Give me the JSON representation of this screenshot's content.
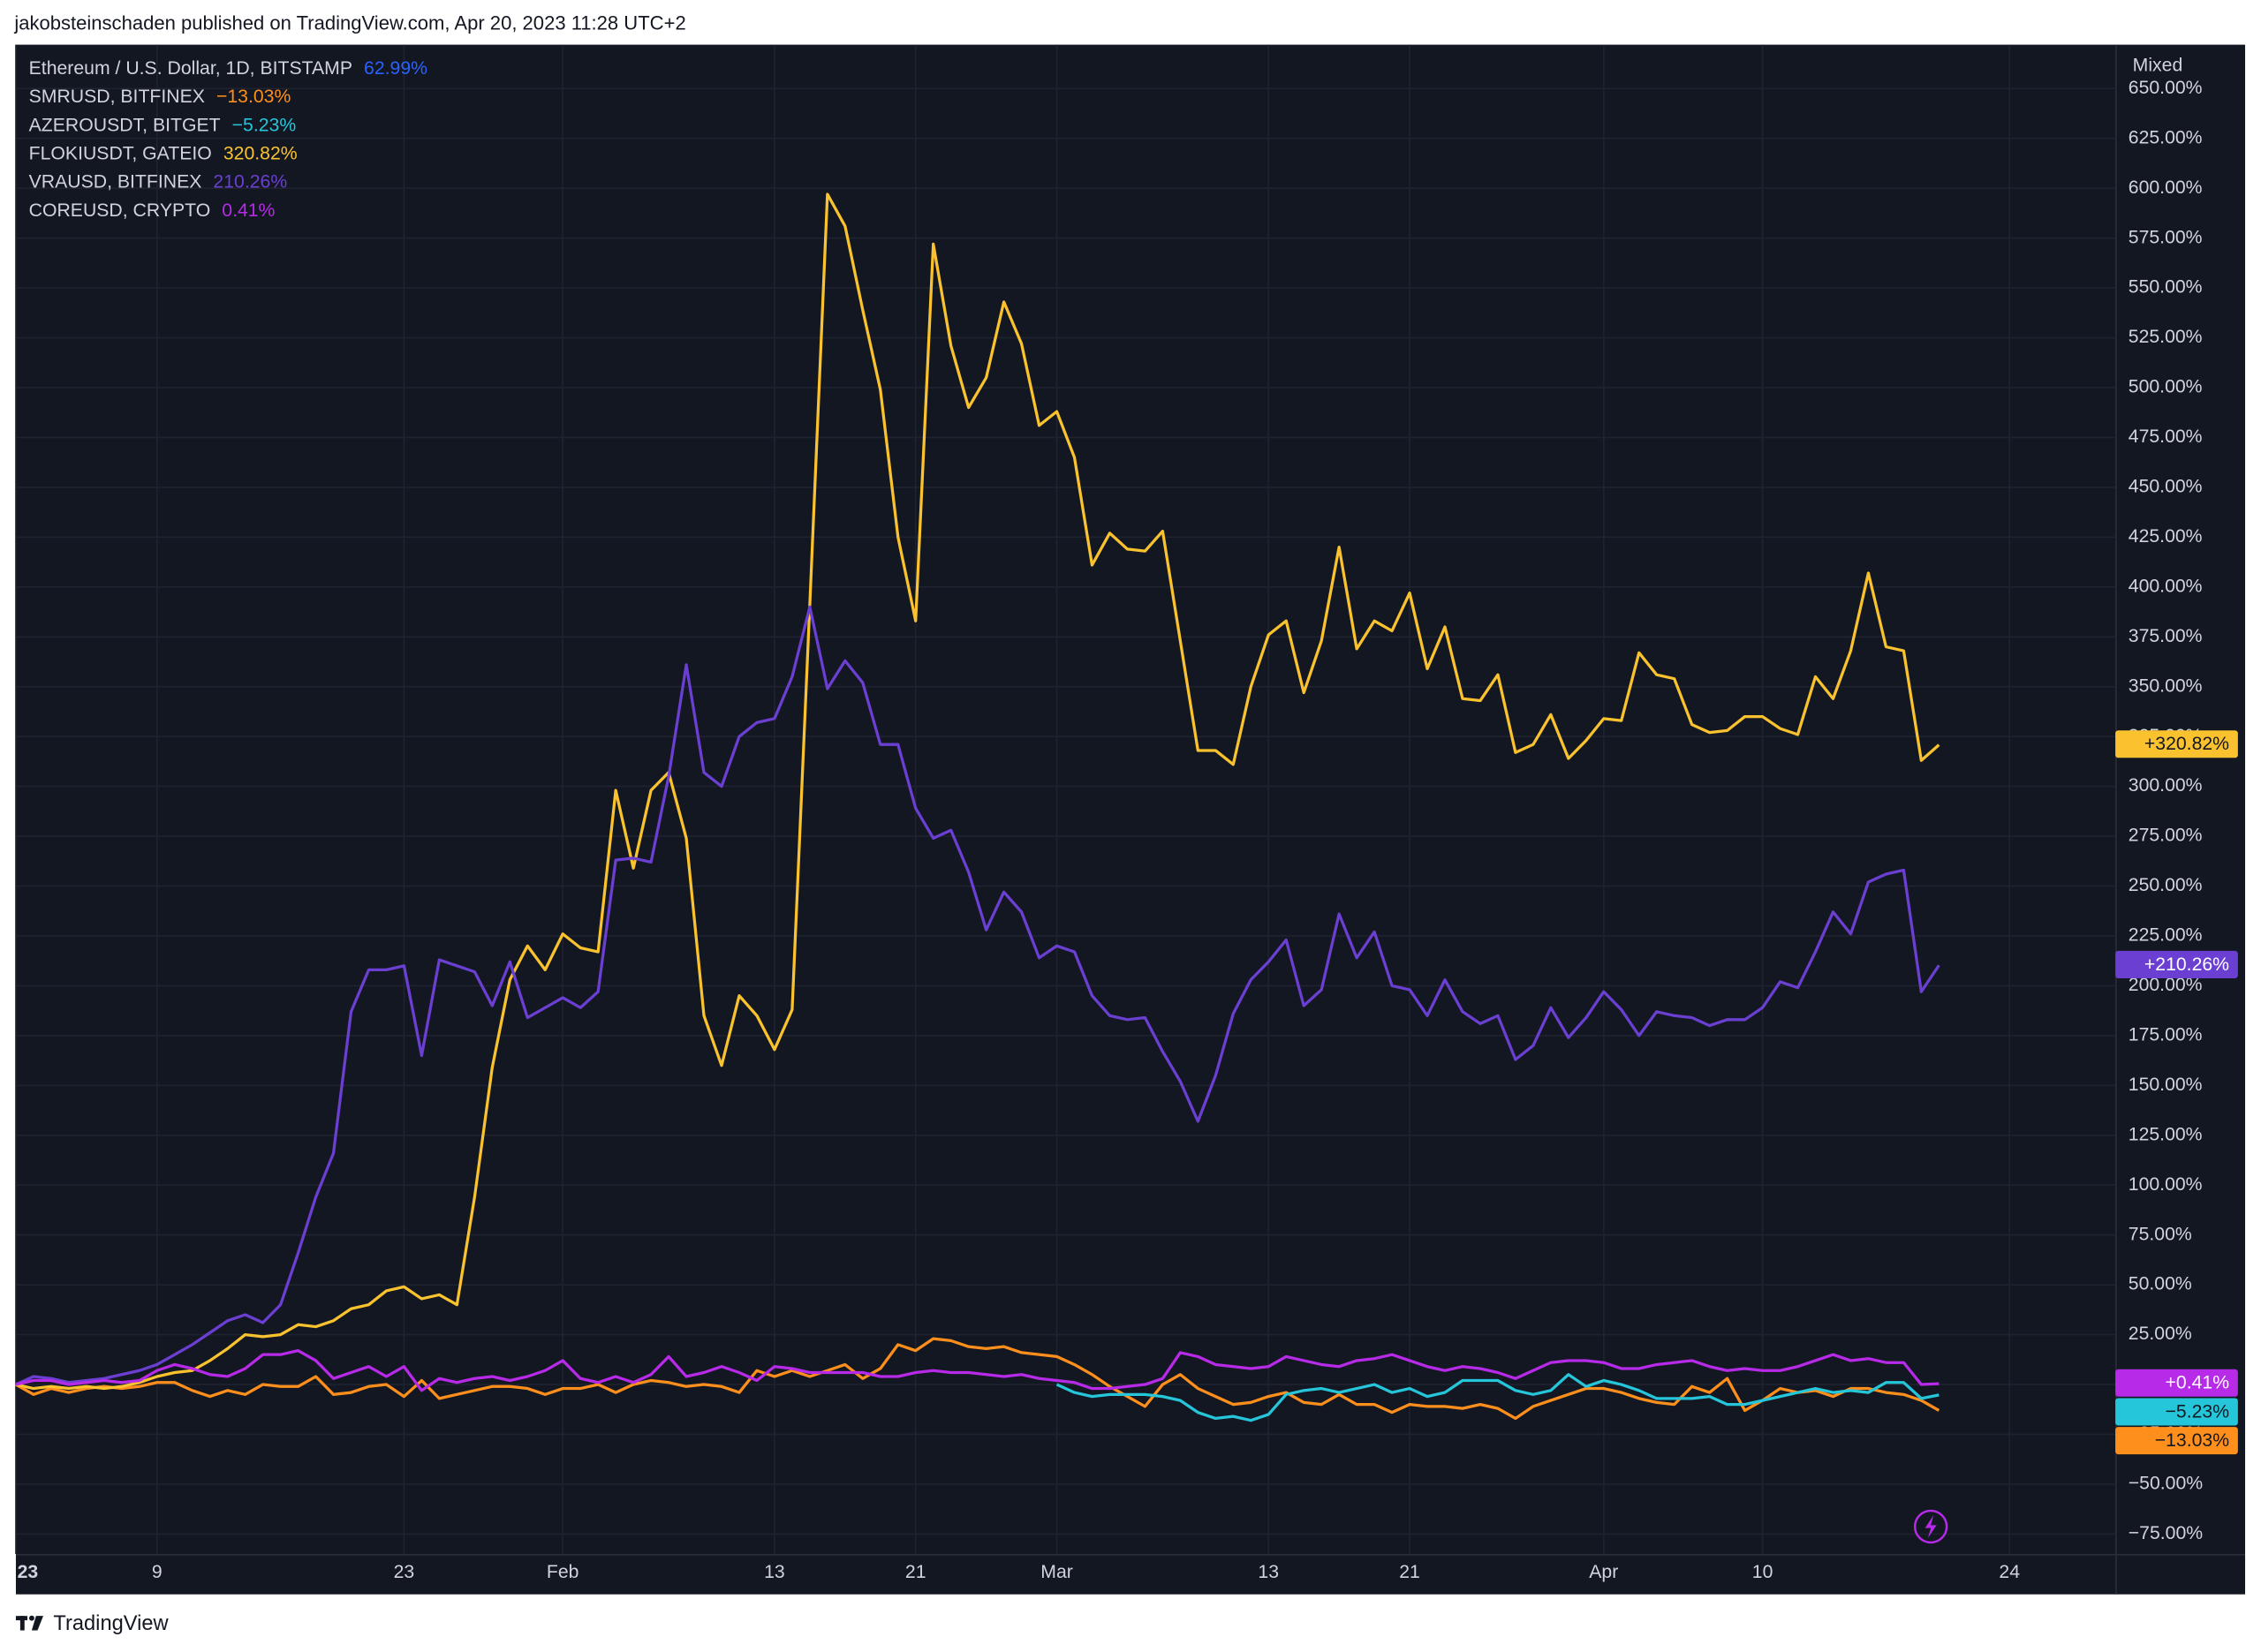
{
  "header": "jakobsteinschaden published on TradingView.com, Apr 20, 2023 11:28 UTC+2",
  "footer": "TradingView",
  "chart_data": {
    "type": "line",
    "scale_label": "Mixed",
    "grid": true,
    "x": [
      "2023-01-01",
      "2023-01-02",
      "2023-01-03",
      "2023-01-04",
      "2023-01-05",
      "2023-01-06",
      "2023-01-07",
      "2023-01-08",
      "2023-01-09",
      "2023-01-10",
      "2023-01-11",
      "2023-01-12",
      "2023-01-13",
      "2023-01-14",
      "2023-01-15",
      "2023-01-16",
      "2023-01-17",
      "2023-01-18",
      "2023-01-19",
      "2023-01-20",
      "2023-01-21",
      "2023-01-22",
      "2023-01-23",
      "2023-01-24",
      "2023-01-25",
      "2023-01-26",
      "2023-01-27",
      "2023-01-28",
      "2023-01-29",
      "2023-01-30",
      "2023-01-31",
      "2023-02-01",
      "2023-02-02",
      "2023-02-03",
      "2023-02-04",
      "2023-02-05",
      "2023-02-06",
      "2023-02-07",
      "2023-02-08",
      "2023-02-09",
      "2023-02-10",
      "2023-02-11",
      "2023-02-12",
      "2023-02-13",
      "2023-02-14",
      "2023-02-15",
      "2023-02-16",
      "2023-02-17",
      "2023-02-18",
      "2023-02-19",
      "2023-02-20",
      "2023-02-21",
      "2023-02-22",
      "2023-02-23",
      "2023-02-24",
      "2023-02-25",
      "2023-02-26",
      "2023-02-27",
      "2023-02-28",
      "2023-03-01",
      "2023-03-02",
      "2023-03-03",
      "2023-03-04",
      "2023-03-05",
      "2023-03-06",
      "2023-03-07",
      "2023-03-08",
      "2023-03-09",
      "2023-03-10",
      "2023-03-11",
      "2023-03-12",
      "2023-03-13",
      "2023-03-14",
      "2023-03-15",
      "2023-03-16",
      "2023-03-17",
      "2023-03-18",
      "2023-03-19",
      "2023-03-20",
      "2023-03-21",
      "2023-03-22",
      "2023-03-23",
      "2023-03-24",
      "2023-03-25",
      "2023-03-26",
      "2023-03-27",
      "2023-03-28",
      "2023-03-29",
      "2023-03-30",
      "2023-03-31",
      "2023-04-01",
      "2023-04-02",
      "2023-04-03",
      "2023-04-04",
      "2023-04-05",
      "2023-04-06",
      "2023-04-07",
      "2023-04-08",
      "2023-04-09",
      "2023-04-10",
      "2023-04-11",
      "2023-04-12",
      "2023-04-13",
      "2023-04-14",
      "2023-04-15",
      "2023-04-16",
      "2023-04-17",
      "2023-04-18",
      "2023-04-19",
      "2023-04-20"
    ],
    "xlim": [
      "2023-01-01",
      "2023-04-30"
    ],
    "xticks": [
      {
        "value": "2023-01-01",
        "label": "23"
      },
      {
        "value": "2023-01-09",
        "label": "9"
      },
      {
        "value": "2023-01-23",
        "label": "23"
      },
      {
        "value": "2023-02-01",
        "label": "Feb"
      },
      {
        "value": "2023-02-13",
        "label": "13"
      },
      {
        "value": "2023-02-21",
        "label": "21"
      },
      {
        "value": "2023-03-01",
        "label": "Mar"
      },
      {
        "value": "2023-03-13",
        "label": "13"
      },
      {
        "value": "2023-03-21",
        "label": "21"
      },
      {
        "value": "2023-04-01",
        "label": "Apr"
      },
      {
        "value": "2023-04-10",
        "label": "10"
      },
      {
        "value": "2023-04-24",
        "label": "24"
      }
    ],
    "ylim": [
      -85,
      672
    ],
    "yticks": [
      {
        "value": -75,
        "label": "−75.00%"
      },
      {
        "value": -50,
        "label": "−50.00%"
      },
      {
        "value": -25,
        "label": "−25.00%"
      },
      {
        "value": 0,
        "label": "0.00%"
      },
      {
        "value": 25,
        "label": "25.00%"
      },
      {
        "value": 50,
        "label": "50.00%"
      },
      {
        "value": 75,
        "label": "75.00%"
      },
      {
        "value": 100,
        "label": "100.00%"
      },
      {
        "value": 125,
        "label": "125.00%"
      },
      {
        "value": 150,
        "label": "150.00%"
      },
      {
        "value": 175,
        "label": "175.00%"
      },
      {
        "value": 200,
        "label": "200.00%"
      },
      {
        "value": 225,
        "label": "225.00%"
      },
      {
        "value": 250,
        "label": "250.00%"
      },
      {
        "value": 275,
        "label": "275.00%"
      },
      {
        "value": 300,
        "label": "300.00%"
      },
      {
        "value": 325,
        "label": "325.00%"
      },
      {
        "value": 350,
        "label": "350.00%"
      },
      {
        "value": 375,
        "label": "375.00%"
      },
      {
        "value": 400,
        "label": "400.00%"
      },
      {
        "value": 425,
        "label": "425.00%"
      },
      {
        "value": 450,
        "label": "450.00%"
      },
      {
        "value": 475,
        "label": "475.00%"
      },
      {
        "value": 500,
        "label": "500.00%"
      },
      {
        "value": 525,
        "label": "525.00%"
      },
      {
        "value": 550,
        "label": "550.00%"
      },
      {
        "value": 575,
        "label": "575.00%"
      },
      {
        "value": 600,
        "label": "600.00%"
      },
      {
        "value": 625,
        "label": "625.00%"
      },
      {
        "value": 650,
        "label": "650.00%"
      }
    ],
    "series": [
      {
        "name": "Ethereum / U.S. Dollar, 1D, BITSTAMP",
        "color": "#2962ff",
        "change_label": "62.99%"
      },
      {
        "name": "SMRUSD, BITFINEX",
        "color": "#ff8f1c",
        "change_label": "−13.03%",
        "tag_label": "−13.03%",
        "values": [
          0,
          -5,
          -2,
          -4,
          -2,
          -1,
          -2,
          -1,
          1,
          1,
          -3,
          -6,
          -3,
          -5,
          0,
          -1,
          -1,
          4,
          -5,
          -4,
          -1,
          0,
          -6,
          2,
          -7,
          -5,
          -3,
          -1,
          -1,
          -2,
          -5,
          -2,
          -2,
          0,
          -4,
          0,
          2,
          1,
          -1,
          0,
          -1,
          -4,
          7,
          4,
          7,
          4,
          7,
          10,
          3,
          8,
          20,
          17,
          23,
          22,
          19,
          18,
          19,
          16,
          15,
          14,
          10,
          5,
          -1,
          -6,
          -11,
          0,
          5,
          -2,
          -6,
          -10,
          -9,
          -6,
          -4,
          -9,
          -10,
          -5,
          -10,
          -10,
          -14,
          -10,
          -11,
          -11,
          -12,
          -10,
          -12,
          -17,
          -11,
          -8,
          -5,
          -2,
          -2,
          -4,
          -7,
          -9,
          -10,
          -1,
          -4,
          3,
          -13,
          -8,
          -2,
          -4,
          -3,
          -6,
          -2,
          -2,
          -4,
          -5,
          -8,
          -13.03
        ]
      },
      {
        "name": "AZEROUSDT, BITGET",
        "color": "#26c6da",
        "change_label": "−5.23%",
        "tag_label": "−5.23%",
        "values": [
          null,
          null,
          null,
          null,
          null,
          null,
          null,
          null,
          null,
          null,
          null,
          null,
          null,
          null,
          null,
          null,
          null,
          null,
          null,
          null,
          null,
          null,
          null,
          null,
          null,
          null,
          null,
          null,
          null,
          null,
          null,
          null,
          null,
          null,
          null,
          null,
          null,
          null,
          null,
          null,
          null,
          null,
          null,
          null,
          null,
          null,
          null,
          null,
          null,
          null,
          null,
          null,
          null,
          null,
          null,
          null,
          null,
          null,
          null,
          0,
          -4,
          -6,
          -5,
          -5,
          -5,
          -6,
          -8,
          -14,
          -17,
          -16,
          -18,
          -15,
          -5,
          -3,
          -2,
          -4,
          -2,
          0,
          -4,
          -2,
          -6,
          -4,
          2,
          2,
          2,
          -3,
          -5,
          -3,
          5,
          -1,
          2,
          0,
          -3,
          -7,
          -7,
          -7,
          -6,
          -10,
          -10,
          -8,
          -6,
          -4,
          -2,
          -4,
          -3,
          -4,
          1,
          1,
          -7,
          -5.23
        ]
      },
      {
        "name": "FLOKIUSDT, GATEIO",
        "color": "#f9c22e",
        "change_label": "320.82%",
        "tag_label": "+320.82%",
        "values": [
          0,
          -2,
          -1,
          -2,
          -1,
          -2,
          -1,
          1,
          4,
          6,
          7,
          12,
          18,
          25,
          24,
          25,
          30,
          29,
          32,
          38,
          40,
          47,
          49,
          43,
          45,
          40,
          94,
          159,
          203,
          220,
          208,
          226,
          219,
          217,
          298,
          259,
          298,
          307,
          274,
          185,
          160,
          195,
          185,
          168,
          188,
          391,
          597,
          581,
          539,
          499,
          425,
          383,
          572,
          521,
          490,
          505,
          543,
          522,
          481,
          488,
          465,
          411,
          427,
          419,
          418,
          428,
          373,
          318,
          318,
          311,
          350,
          376,
          383,
          347,
          373,
          420,
          369,
          383,
          378,
          397,
          359,
          380,
          344,
          343,
          356,
          317,
          321,
          336,
          314,
          323,
          334,
          333,
          367,
          356,
          354,
          331,
          327,
          328,
          335,
          335,
          329,
          326,
          355,
          344,
          368,
          407,
          370,
          368,
          313,
          320.82
        ]
      },
      {
        "name": "VRAUSD, BITFINEX",
        "color": "#6a3fd2",
        "change_label": "210.26%",
        "tag_label": "+210.26%",
        "values": [
          0,
          4,
          3,
          1,
          2,
          3,
          5,
          7,
          10,
          15,
          20,
          26,
          32,
          35,
          31,
          40,
          66,
          94,
          116,
          187,
          208,
          208,
          210,
          165,
          213,
          210,
          207,
          190,
          212,
          184,
          189,
          194,
          189,
          197,
          263,
          264,
          262,
          305,
          361,
          307,
          300,
          325,
          332,
          334,
          355,
          390,
          349,
          363,
          352,
          321,
          321,
          289,
          274,
          278,
          257,
          228,
          247,
          237,
          214,
          220,
          217,
          195,
          185,
          183,
          184,
          167,
          152,
          132,
          155,
          186,
          203,
          212,
          223,
          190,
          198,
          236,
          214,
          227,
          200,
          198,
          185,
          203,
          187,
          181,
          185,
          163,
          170,
          189,
          174,
          184,
          197,
          188,
          175,
          187,
          185,
          184,
          180,
          183,
          183,
          189,
          202,
          199,
          217,
          237,
          226,
          252,
          256,
          258,
          197,
          210.26
        ]
      },
      {
        "name": "COREUSD, CRYPTO",
        "color": "#b62ae8",
        "change_label": "0.41%",
        "tag_label": "+0.41%",
        "values": [
          0,
          2,
          2,
          0,
          1,
          2,
          1,
          2,
          7,
          10,
          8,
          5,
          4,
          8,
          15,
          15,
          17,
          12,
          3,
          6,
          9,
          4,
          9,
          -3,
          3,
          1,
          3,
          4,
          2,
          4,
          7,
          12,
          3,
          1,
          4,
          1,
          5,
          14,
          4,
          6,
          9,
          6,
          2,
          9,
          8,
          6,
          6,
          6,
          6,
          4,
          4,
          6,
          7,
          6,
          6,
          5,
          4,
          5,
          3,
          2,
          1,
          -2,
          -2,
          -1,
          0,
          3,
          16,
          14,
          10,
          9,
          8,
          9,
          14,
          12,
          10,
          9,
          12,
          13,
          15,
          12,
          9,
          7,
          9,
          8,
          6,
          3,
          7,
          11,
          12,
          12,
          11,
          8,
          8,
          10,
          11,
          12,
          9,
          7,
          8,
          7,
          7,
          9,
          12,
          15,
          12,
          13,
          11,
          11,
          0,
          0.41
        ]
      }
    ]
  }
}
